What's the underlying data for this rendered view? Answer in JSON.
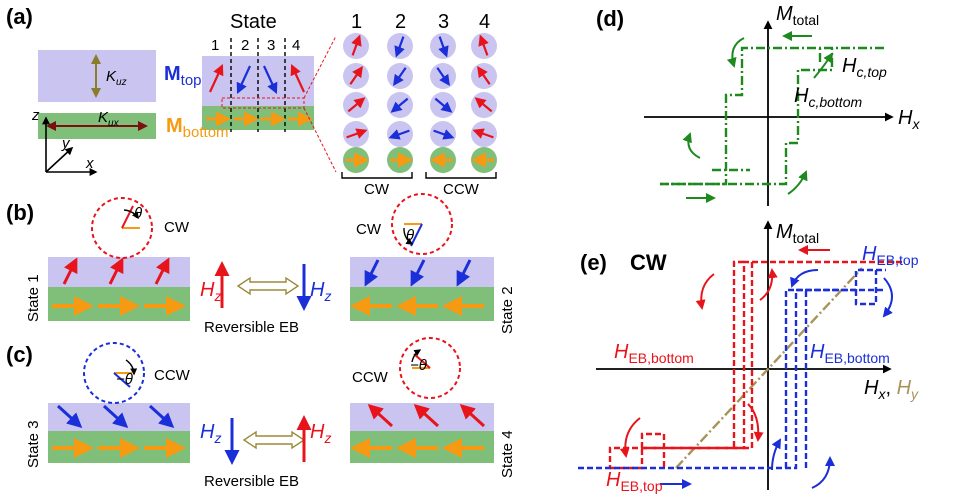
{
  "panels": {
    "a": {
      "label": "(a)",
      "k_uz": "K",
      "k_uz_sub": "uz",
      "k_ux": "K",
      "k_ux_sub": "ux",
      "axis_z": "z",
      "axis_y": "y",
      "axis_x": "x",
      "state_title": "State",
      "state_numbers": [
        "1",
        "2",
        "3",
        "4"
      ],
      "m_top": "M",
      "m_top_sub": "top",
      "m_bottom": "M",
      "m_bottom_sub": "bottom",
      "group_cw": "CW",
      "group_ccw": "CCW"
    },
    "b": {
      "label": "(b)",
      "left_state": "State 1",
      "right_state": "State 2",
      "left_chirality": "CW",
      "right_chirality": "CW",
      "theta": "θ",
      "field_left": "H",
      "field_right": "H",
      "field_sub": "z",
      "caption": "Reversible EB"
    },
    "c": {
      "label": "(c)",
      "left_state": "State 3",
      "right_state": "State 4",
      "left_chirality": "CCW",
      "right_chirality": "CCW",
      "theta_neg": "−θ",
      "field_left": "H",
      "field_right": "H",
      "field_sub": "z",
      "caption": "Reversible EB"
    },
    "d": {
      "label": "(d)",
      "y_axis": "M",
      "y_axis_sub": "total",
      "x_axis": "H",
      "x_axis_sub": "x",
      "hc_top": "H",
      "hc_top_sub": "c,top",
      "hc_bottom": "H",
      "hc_bottom_sub": "c,bottom"
    },
    "e": {
      "label": "(e)",
      "tag": "CW",
      "y_axis": "M",
      "y_axis_sub": "total",
      "x_axis": "H",
      "x_axis_sub": "x",
      "x_axis_sep": ", ",
      "y_field": "H",
      "y_field_sub": "y",
      "heb_top_right": "H",
      "heb_top_right_sub": "EB,top",
      "heb_bottom_left": "H",
      "heb_bottom_left_sub": "EB,bottom",
      "heb_bottom_right": "H",
      "heb_bottom_right_sub": "EB,bottom",
      "heb_top_left": "H",
      "heb_top_left_sub": "EB,top"
    }
  },
  "colors": {
    "top_layer": "#c9c4f0",
    "bottom_layer": "#7fbf7a",
    "red": "#e8141c",
    "blue": "#1a2fd8",
    "orange": "#f59a12",
    "green_loop": "#1e8a1e",
    "tan": "#a8935a",
    "olive": "#8a7d2a"
  }
}
